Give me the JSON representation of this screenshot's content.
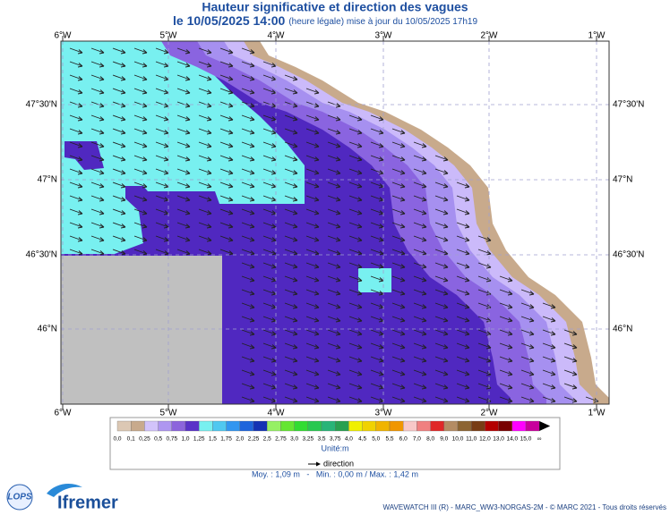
{
  "header": {
    "title": "Hauteur significative et direction des vagues",
    "date": "le 10/05/2025 14:00",
    "update": "(heure légale) mise à jour du 10/05/2025 17h19"
  },
  "map": {
    "longitudes": [
      "6°W",
      "5°W",
      "4°W",
      "3°W",
      "2°W",
      "1°W"
    ],
    "latitudes": [
      "47°30'N",
      "47°N",
      "46°30'N",
      "46°N"
    ]
  },
  "colorbar": {
    "labels": [
      "0,0",
      "0,1",
      "0,25",
      "0,5",
      "0,75",
      "1,0",
      "1,25",
      "1,5",
      "1,75",
      "2,0",
      "2,25",
      "2,5",
      "2,75",
      "3,0",
      "3,25",
      "3,5",
      "3,75",
      "4,0",
      "4,5",
      "5,0",
      "5,5",
      "6,0",
      "7,0",
      "8,0",
      "9,0",
      "10,0",
      "11,0",
      "12,0",
      "13,0",
      "14,0",
      "15,0",
      "∞"
    ],
    "colors": [
      "#dcc8b4",
      "#c8aa8c",
      "#d2c3fa",
      "#ae96f0",
      "#8c64dc",
      "#5a32c8",
      "#78f0f0",
      "#50c8f0",
      "#3296f0",
      "#1e64dc",
      "#1432b4",
      "#96f064",
      "#64e632",
      "#32dc32",
      "#28c850",
      "#28b478",
      "#28a050",
      "#f0f000",
      "#f0d200",
      "#f0b400",
      "#f09600",
      "#f8c8c8",
      "#f08080",
      "#e02828",
      "#b48c64",
      "#8c6432",
      "#783c14",
      "#b40000",
      "#780000",
      "#ff00ff",
      "#c8009c"
    ],
    "unit": "Unité:m",
    "direction": "direction"
  },
  "stats": "Moy. : 1,09 m   -   Min. : 0,00 m / Max. : 1,42 m",
  "footer": {
    "credits": "WAVEWATCH III (R) - MARC_WW3-NORGAS-2M - © MARC 2021 - Tous droits réservés",
    "logo_lops": "LOPS",
    "logo_ifremer": "Ifremer"
  }
}
